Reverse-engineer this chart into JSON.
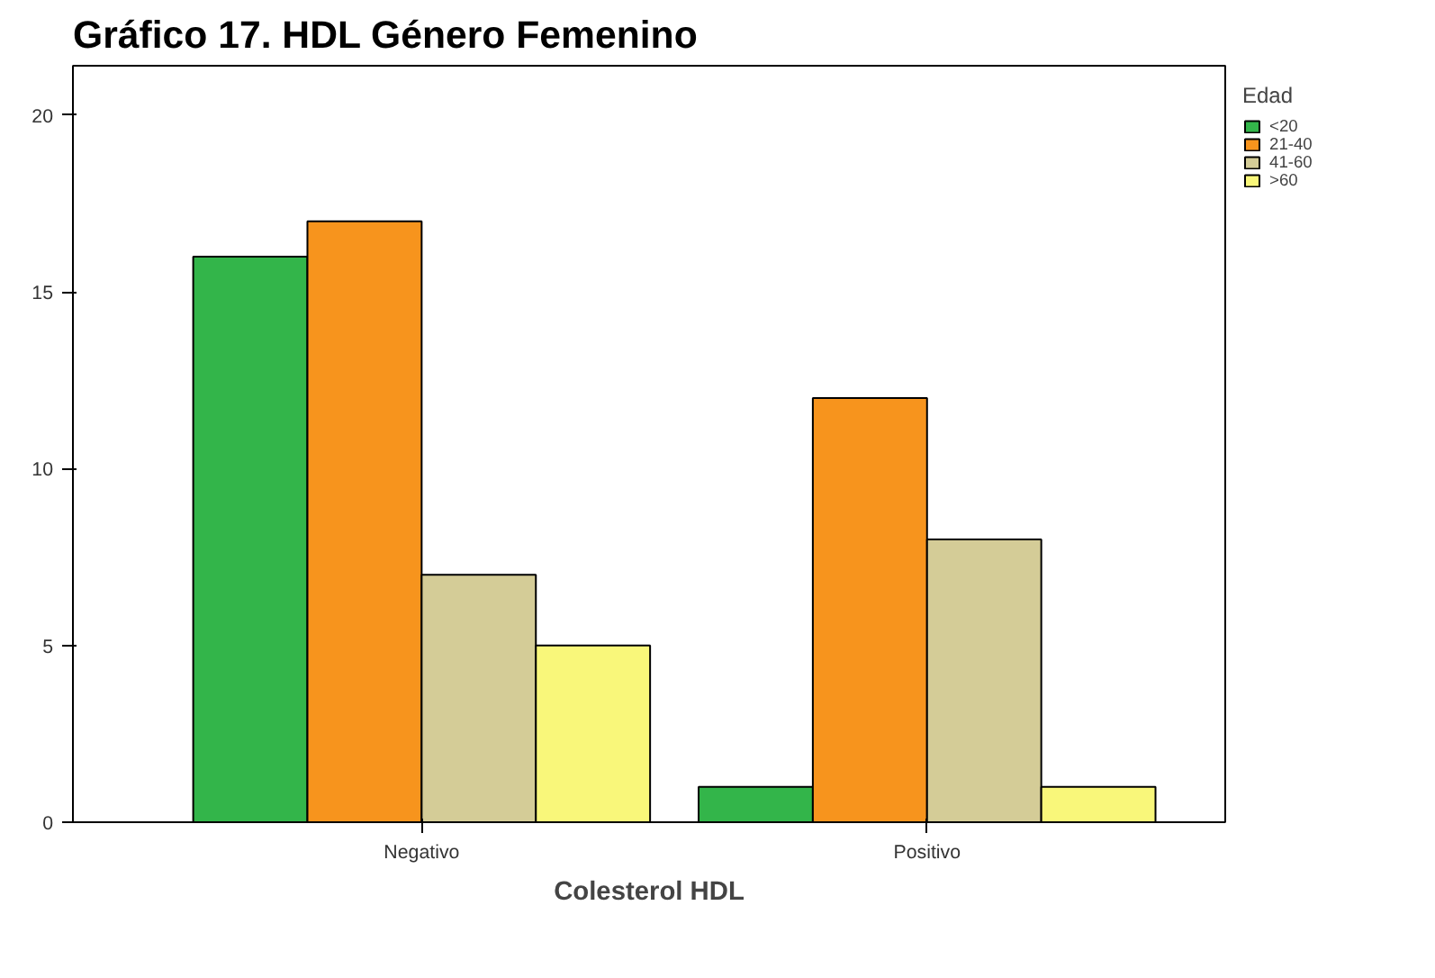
{
  "chart_data": {
    "type": "bar",
    "title": "Gráfico  17. HDL Género Femenino",
    "xlabel": "Colesterol HDL",
    "legend_title": "Edad",
    "categories": [
      "Negativo",
      "Positivo"
    ],
    "series": [
      {
        "name": "<20",
        "color": "#33b54a",
        "values": [
          16,
          1
        ]
      },
      {
        "name": "21-40",
        "color": "#f7941d",
        "values": [
          17,
          12
        ]
      },
      {
        "name": "41-60",
        "color": "#d4cc97",
        "values": [
          7,
          8
        ]
      },
      {
        "name": ">60",
        "color": "#f9f77a",
        "values": [
          5,
          1
        ]
      }
    ],
    "ylim": [
      0,
      21.4
    ],
    "yticks": [
      0,
      5,
      10,
      15,
      20
    ],
    "grid": false,
    "legend": "top right"
  }
}
